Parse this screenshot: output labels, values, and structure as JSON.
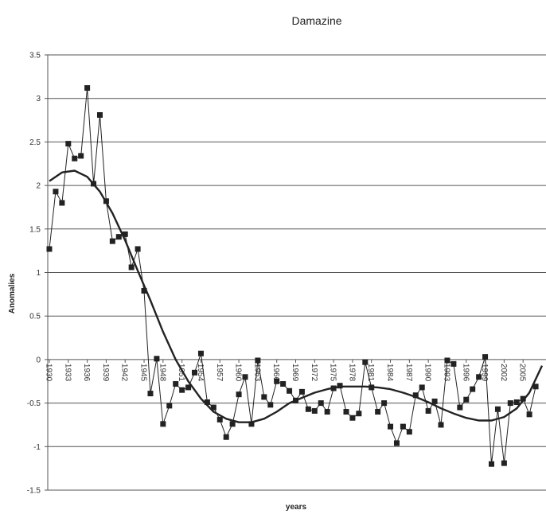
{
  "chart_data": {
    "type": "line",
    "title": "Damazine",
    "xlabel": "years",
    "ylabel": "Anomalies",
    "xlim": [
      1930,
      2008
    ],
    "ylim": [
      -1.5,
      3.5
    ],
    "y_ticks": [
      -1.5,
      -1,
      -0.5,
      0,
      0.5,
      1,
      1.5,
      2,
      2.5,
      3,
      3.5
    ],
    "y_tick_labels": [
      "-1.5",
      "-1",
      "-0.5",
      "0",
      "0.5",
      "1",
      "1.5",
      "2",
      "2.5",
      "3",
      "3.5"
    ],
    "x_tick_labels": [
      "1930",
      "1933",
      "1936",
      "1939",
      "1942",
      "1945",
      "1948",
      "1951",
      "1954",
      "1957",
      "1960",
      "1963",
      "1966",
      "1969",
      "1972",
      "1975",
      "1978",
      "1981",
      "1984",
      "1987",
      "1990",
      "1993",
      "1996",
      "1999",
      "2002",
      "2005"
    ],
    "grid": "horizontal",
    "legend": "none",
    "series": [
      {
        "style": "markers",
        "color": "#222222",
        "marker": "square",
        "x": [
          1930,
          1931,
          1932,
          1933,
          1934,
          1935,
          1936,
          1937,
          1938,
          1939,
          1940,
          1941,
          1942,
          1943,
          1944,
          1945,
          1946,
          1947,
          1948,
          1949,
          1950,
          1951,
          1952,
          1953,
          1954,
          1955,
          1956,
          1957,
          1958,
          1959,
          1960,
          1961,
          1962,
          1963,
          1964,
          1965,
          1966,
          1967,
          1968,
          1969,
          1970,
          1971,
          1972,
          1973,
          1974,
          1975,
          1976,
          1977,
          1978,
          1979,
          1980,
          1981,
          1982,
          1983,
          1984,
          1985,
          1986,
          1987,
          1988,
          1989,
          1990,
          1991,
          1992,
          1993,
          1994,
          1995,
          1996,
          1997,
          1998,
          1999,
          2000,
          2001,
          2002,
          2003,
          2004,
          2005,
          2006,
          2007
        ],
        "values": [
          1.27,
          1.93,
          1.8,
          2.48,
          2.31,
          2.34,
          3.12,
          2.02,
          2.81,
          1.82,
          1.36,
          1.41,
          1.44,
          1.06,
          1.27,
          0.79,
          -0.39,
          0.01,
          -0.74,
          -0.53,
          -0.28,
          -0.35,
          -0.32,
          -0.15,
          0.07,
          -0.49,
          -0.55,
          -0.69,
          -0.89,
          -0.74,
          -0.4,
          -0.2,
          -0.74,
          -0.01,
          -0.43,
          -0.52,
          -0.25,
          -0.28,
          -0.36,
          -0.47,
          -0.37,
          -0.57,
          -0.59,
          -0.5,
          -0.6,
          -0.33,
          -0.3,
          -0.6,
          -0.67,
          -0.62,
          -0.03,
          -0.32,
          -0.6,
          -0.5,
          -0.77,
          -0.96,
          -0.77,
          -0.83,
          -0.41,
          -0.32,
          -0.59,
          -0.48,
          -0.75,
          -0.01,
          -0.05,
          -0.55,
          -0.46,
          -0.34,
          -0.2,
          0.03,
          -1.2,
          -0.57,
          -1.19,
          -0.5,
          -0.49,
          -0.45,
          -0.63,
          -0.31
        ]
      },
      {
        "style": "trend",
        "color": "#222222",
        "x": [
          1930,
          1932,
          1934,
          1936,
          1938,
          1940,
          1942,
          1944,
          1946,
          1948,
          1950,
          1952,
          1954,
          1956,
          1958,
          1960,
          1962,
          1964,
          1966,
          1968,
          1970,
          1972,
          1974,
          1976,
          1978,
          1980,
          1982,
          1984,
          1986,
          1988,
          1990,
          1992,
          1994,
          1996,
          1998,
          2000,
          2002,
          2004,
          2006,
          2008
        ],
        "values": [
          2.05,
          2.15,
          2.17,
          2.1,
          1.93,
          1.68,
          1.37,
          1.02,
          0.68,
          0.32,
          0.0,
          -0.25,
          -0.45,
          -0.6,
          -0.68,
          -0.72,
          -0.72,
          -0.68,
          -0.6,
          -0.5,
          -0.44,
          -0.38,
          -0.34,
          -0.31,
          -0.31,
          -0.31,
          -0.32,
          -0.34,
          -0.38,
          -0.43,
          -0.49,
          -0.56,
          -0.62,
          -0.67,
          -0.7,
          -0.7,
          -0.66,
          -0.56,
          -0.38,
          -0.07
        ]
      }
    ]
  }
}
